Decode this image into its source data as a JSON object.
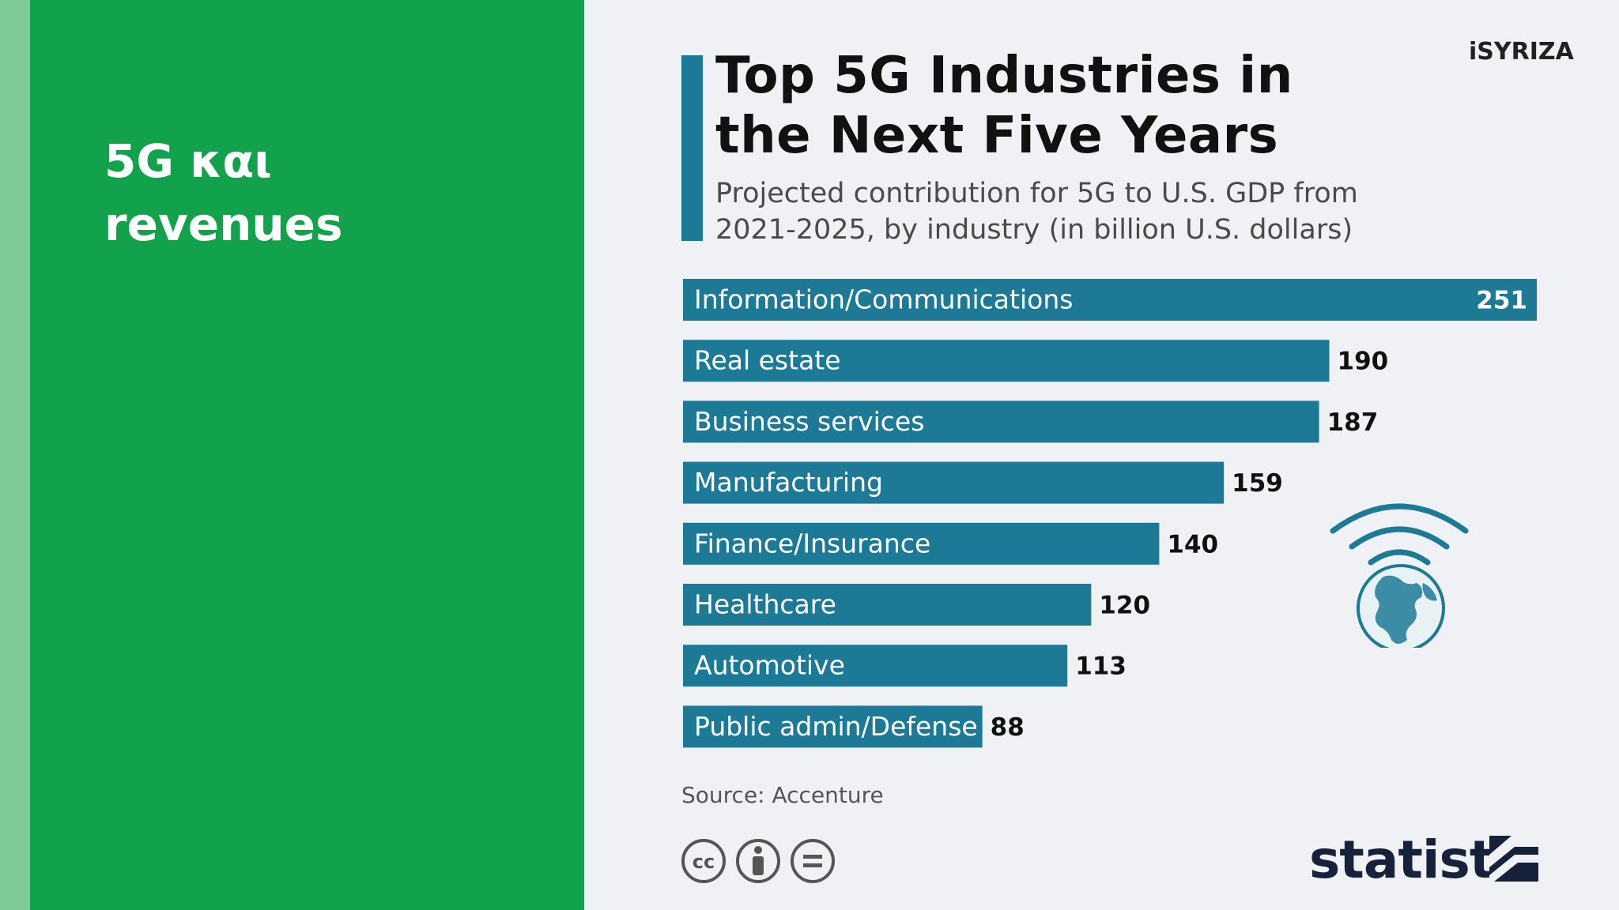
{
  "slide": {
    "title": "5G και\nrevenues"
  },
  "brand": {
    "logo_text": "iSYRIZA"
  },
  "colors": {
    "left_panel": "#13a24c",
    "left_strip": "#7fcb97",
    "bar": "#1c7a96",
    "background": "#eff1f5"
  },
  "icons": [
    "globe-icon",
    "wifi-signal-icon",
    "cc-license-icon",
    "by-attribution-icon",
    "no-derivatives-icon",
    "statista-logo-icon"
  ],
  "chart_data": {
    "type": "bar",
    "orientation": "horizontal",
    "title": "Top 5G Industries in\nthe Next Five Years",
    "subtitle": "Projected contribution for 5G to U.S. GDP from\n2021-2025, by industry (in billion U.S. dollars)",
    "categories": [
      "Information/Communications",
      "Real estate",
      "Business services",
      "Manufacturing",
      "Finance/Insurance",
      "Healthcare",
      "Automotive",
      "Public admin/Defense"
    ],
    "values": [
      251,
      190,
      187,
      159,
      140,
      120,
      113,
      88
    ],
    "xlim": [
      0,
      251
    ],
    "grid": false,
    "legend": "none",
    "source": "Source: Accenture",
    "publisher": "statista"
  }
}
